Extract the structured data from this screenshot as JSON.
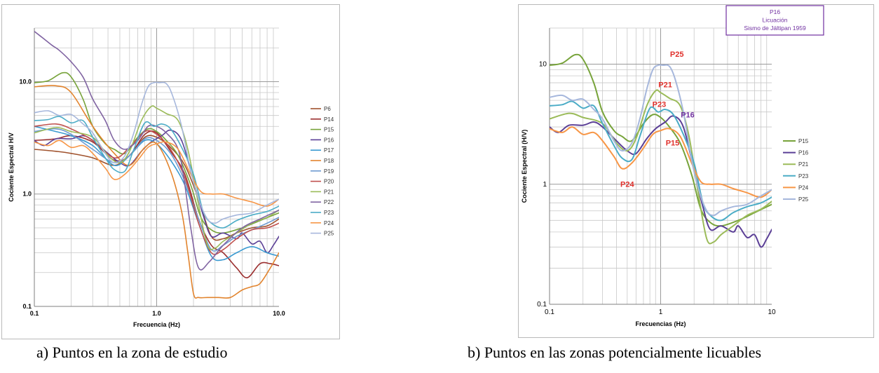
{
  "chart_data": [
    {
      "type": "line",
      "caption": "a) Puntos en la zona de estudio",
      "title": "",
      "xlabel": "Frecuencia (Hz)",
      "ylabel": "Cociente Espectral H/V",
      "xscale": "log",
      "yscale": "log",
      "xlim": [
        0.1,
        10.0
      ],
      "ylim": [
        0.1,
        30
      ],
      "xticks": [
        "0.1",
        "1.0",
        "10.0"
      ],
      "yticks": [
        "0.1",
        "1.0",
        "10.0"
      ],
      "grid": true,
      "legend_position": "right",
      "series": [
        {
          "name": "P6",
          "color": "#a0522d",
          "x": [
            0.1,
            0.15,
            0.2,
            0.3,
            0.45,
            0.6,
            0.8,
            1.0,
            1.3,
            1.7,
            2.2,
            2.8,
            3.5,
            4.5,
            6,
            8,
            10
          ],
          "y": [
            2.5,
            2.4,
            2.3,
            2.1,
            1.8,
            2.2,
            3.2,
            3.2,
            2.6,
            1.8,
            0.9,
            0.42,
            0.4,
            0.45,
            0.5,
            0.52,
            0.6
          ]
        },
        {
          "name": "P14",
          "color": "#9b2f2f",
          "x": [
            0.1,
            0.15,
            0.2,
            0.3,
            0.45,
            0.6,
            0.8,
            1.0,
            1.3,
            1.7,
            2.2,
            2.8,
            3.5,
            4.5,
            5.5,
            7,
            8.5,
            10
          ],
          "y": [
            3.0,
            3.1,
            3.3,
            2.9,
            2.0,
            2.2,
            3.4,
            3.5,
            2.4,
            1.5,
            0.6,
            0.35,
            0.3,
            0.22,
            0.18,
            0.24,
            0.24,
            0.23
          ]
        },
        {
          "name": "P15",
          "color": "#77a33a",
          "x": [
            0.1,
            0.13,
            0.17,
            0.2,
            0.25,
            0.3,
            0.38,
            0.45,
            0.55,
            0.7,
            0.85,
            1.0,
            1.2,
            1.5,
            1.9,
            2.3,
            2.8,
            3.5,
            5,
            7,
            10
          ],
          "y": [
            9.8,
            10.2,
            12.0,
            11.0,
            7.0,
            4.0,
            2.8,
            2.5,
            2.3,
            3.2,
            3.8,
            3.6,
            3.0,
            2.2,
            1.2,
            0.62,
            0.48,
            0.45,
            0.5,
            0.58,
            0.68
          ]
        },
        {
          "name": "P16",
          "color": "#5b3f96",
          "x": [
            0.1,
            0.12,
            0.15,
            0.2,
            0.25,
            0.3,
            0.4,
            0.5,
            0.6,
            0.75,
            0.9,
            1.1,
            1.3,
            1.6,
            2.0,
            2.4,
            2.8,
            3.5,
            4.5,
            5,
            6,
            7,
            8,
            9,
            10
          ],
          "y": [
            3.0,
            2.7,
            3.1,
            3.1,
            3.3,
            3.0,
            2.3,
            1.9,
            1.8,
            2.4,
            2.9,
            3.3,
            3.7,
            3.0,
            1.3,
            0.65,
            0.42,
            0.45,
            0.4,
            0.45,
            0.36,
            0.38,
            0.3,
            0.35,
            0.42
          ]
        },
        {
          "name": "P17",
          "color": "#3a9ad1",
          "x": [
            0.1,
            0.15,
            0.2,
            0.3,
            0.45,
            0.6,
            0.8,
            1.0,
            1.3,
            1.7,
            2.2,
            2.8,
            3.5,
            4.5,
            6,
            8,
            10
          ],
          "y": [
            4.0,
            3.6,
            3.3,
            2.7,
            1.8,
            2.2,
            3.0,
            2.8,
            2.0,
            1.2,
            0.55,
            0.28,
            0.26,
            0.3,
            0.34,
            0.3,
            0.28
          ]
        },
        {
          "name": "P18",
          "color": "#e2842e",
          "x": [
            0.1,
            0.15,
            0.2,
            0.3,
            0.45,
            0.6,
            0.8,
            1.0,
            1.3,
            1.6,
            1.8,
            2.0,
            2.2,
            2.6,
            3.2,
            4,
            5,
            6,
            7,
            8.5,
            10
          ],
          "y": [
            9.0,
            9.2,
            8.0,
            4.0,
            2.3,
            1.8,
            2.6,
            2.8,
            1.6,
            0.7,
            0.3,
            0.13,
            0.12,
            0.12,
            0.12,
            0.12,
            0.14,
            0.15,
            0.16,
            0.22,
            0.3
          ]
        },
        {
          "name": "P19",
          "color": "#6f9bd1",
          "x": [
            0.1,
            0.15,
            0.2,
            0.3,
            0.45,
            0.6,
            0.8,
            1.0,
            1.3,
            1.7,
            2.2,
            2.8,
            3.5,
            4.5,
            6,
            8,
            10
          ],
          "y": [
            3.6,
            3.8,
            3.4,
            2.5,
            1.9,
            2.2,
            3.1,
            3.0,
            2.3,
            1.3,
            0.6,
            0.32,
            0.35,
            0.42,
            0.48,
            0.55,
            0.62
          ]
        },
        {
          "name": "P20",
          "color": "#c0504d",
          "x": [
            0.1,
            0.15,
            0.2,
            0.3,
            0.45,
            0.6,
            0.8,
            1.0,
            1.3,
            1.7,
            2.2,
            2.8,
            3.5,
            4.5,
            6,
            8,
            10
          ],
          "y": [
            4.0,
            4.2,
            3.8,
            3.0,
            2.1,
            2.6,
            3.6,
            3.4,
            2.5,
            1.4,
            0.55,
            0.3,
            0.32,
            0.4,
            0.48,
            0.5,
            0.55
          ]
        },
        {
          "name": "P21",
          "color": "#9bbb59",
          "x": [
            0.1,
            0.15,
            0.2,
            0.3,
            0.4,
            0.5,
            0.6,
            0.75,
            0.9,
            1.0,
            1.2,
            1.5,
            1.8,
            2.2,
            2.6,
            3.0,
            3.5,
            4.5,
            6,
            8,
            10
          ],
          "y": [
            3.5,
            3.9,
            3.6,
            3.2,
            2.2,
            1.9,
            2.4,
            4.5,
            6.0,
            5.8,
            5.2,
            4.5,
            2.5,
            0.8,
            0.35,
            0.33,
            0.38,
            0.45,
            0.55,
            0.62,
            0.72
          ]
        },
        {
          "name": "P22",
          "color": "#8064a2",
          "x": [
            0.1,
            0.12,
            0.14,
            0.16,
            0.2,
            0.25,
            0.3,
            0.38,
            0.45,
            0.55,
            0.7,
            0.85,
            1.0,
            1.2,
            1.5,
            1.7,
            1.9,
            2.2,
            2.7,
            3.5,
            5,
            7,
            10
          ],
          "y": [
            28,
            24,
            21,
            19,
            15,
            11,
            7,
            4.5,
            3,
            2.5,
            3,
            4,
            4,
            3.5,
            2.5,
            1.2,
            0.5,
            0.22,
            0.25,
            0.35,
            0.5,
            0.6,
            0.72
          ]
        },
        {
          "name": "P23",
          "color": "#4bacc6",
          "x": [
            0.1,
            0.13,
            0.16,
            0.2,
            0.25,
            0.3,
            0.38,
            0.45,
            0.55,
            0.65,
            0.8,
            0.95,
            1.1,
            1.3,
            1.6,
            2.0,
            2.4,
            2.8,
            3.5,
            4.5,
            6,
            8,
            10
          ],
          "y": [
            4.5,
            4.6,
            4.9,
            4.3,
            4.5,
            3.2,
            2.1,
            1.65,
            1.6,
            2.5,
            4.3,
            4.0,
            4.2,
            3.8,
            2.6,
            1.5,
            0.7,
            0.55,
            0.5,
            0.58,
            0.65,
            0.7,
            0.78
          ]
        },
        {
          "name": "P24",
          "color": "#f79646",
          "x": [
            0.1,
            0.13,
            0.16,
            0.2,
            0.25,
            0.3,
            0.38,
            0.45,
            0.55,
            0.7,
            0.85,
            1.0,
            1.2,
            1.5,
            1.9,
            2.3,
            2.8,
            3.5,
            4.5,
            6,
            8,
            10
          ],
          "y": [
            2.9,
            2.7,
            3.0,
            2.6,
            2.7,
            2.3,
            1.7,
            1.35,
            1.5,
            2.0,
            2.6,
            2.8,
            2.9,
            2.5,
            1.5,
            1.05,
            1.0,
            1.0,
            0.92,
            0.85,
            0.78,
            0.9
          ]
        },
        {
          "name": "P25",
          "color": "#a6b7dc",
          "x": [
            0.1,
            0.13,
            0.16,
            0.2,
            0.25,
            0.3,
            0.38,
            0.45,
            0.55,
            0.65,
            0.75,
            0.85,
            0.95,
            1.05,
            1.2,
            1.35,
            1.6,
            1.9,
            2.2,
            2.6,
            3,
            3.5,
            4.5,
            6,
            8,
            10
          ],
          "y": [
            5.3,
            5.5,
            5.0,
            5.1,
            4.2,
            3.5,
            2.3,
            1.9,
            2.2,
            3.5,
            6.2,
            9,
            9.8,
            9.8,
            9.6,
            7.5,
            4,
            1.6,
            0.9,
            0.6,
            0.55,
            0.6,
            0.65,
            0.68,
            0.8,
            0.9
          ]
        }
      ]
    },
    {
      "type": "line",
      "caption": "b) Puntos en las zonas potencialmente licuables",
      "title": "",
      "xlabel": "Frecuencias (Hz)",
      "ylabel": "Cociente Espectral  (H/V)",
      "xscale": "log",
      "yscale": "log",
      "xlim": [
        0.1,
        10
      ],
      "ylim": [
        0.1,
        20
      ],
      "xticks": [
        "0.1",
        "1",
        "10"
      ],
      "yticks": [
        "0.1",
        "1",
        "10"
      ],
      "grid": true,
      "legend_position": "right",
      "info_box": [
        "P16",
        "Licuación",
        "Sismo de Jáltipan 1959"
      ],
      "annotations": [
        {
          "text": "P25",
          "x": 1.4,
          "y": 11.5,
          "color": "#e0302b"
        },
        {
          "text": "P21",
          "x": 1.1,
          "y": 6.4,
          "color": "#e0302b"
        },
        {
          "text": "P23",
          "x": 0.97,
          "y": 4.4,
          "color": "#e0302b"
        },
        {
          "text": "P16",
          "x": 1.75,
          "y": 3.6,
          "color": "#7030a0"
        },
        {
          "text": "P15",
          "x": 1.28,
          "y": 2.1,
          "color": "#e0302b"
        },
        {
          "text": "P24",
          "x": 0.5,
          "y": 0.95,
          "color": "#e0302b"
        }
      ],
      "series": [
        {
          "name": "P15",
          "color": "#77a33a",
          "x": [
            0.1,
            0.13,
            0.17,
            0.2,
            0.25,
            0.3,
            0.38,
            0.45,
            0.55,
            0.7,
            0.85,
            1.0,
            1.2,
            1.5,
            1.9,
            2.3,
            2.8,
            3.5,
            5,
            7,
            10
          ],
          "y": [
            9.8,
            10.2,
            12.0,
            11.0,
            7.0,
            4.0,
            2.8,
            2.5,
            2.3,
            3.2,
            3.8,
            3.6,
            3.0,
            2.2,
            1.2,
            0.62,
            0.48,
            0.45,
            0.5,
            0.58,
            0.68
          ]
        },
        {
          "name": "P16",
          "color": "#5b3f96",
          "x": [
            0.1,
            0.12,
            0.15,
            0.2,
            0.25,
            0.3,
            0.4,
            0.5,
            0.6,
            0.75,
            0.9,
            1.1,
            1.3,
            1.6,
            2.0,
            2.4,
            2.8,
            3.5,
            4.5,
            5,
            6,
            7,
            8,
            9,
            10
          ],
          "y": [
            3.0,
            2.7,
            3.1,
            3.1,
            3.3,
            3.0,
            2.3,
            1.9,
            1.8,
            2.4,
            2.9,
            3.3,
            3.7,
            3.0,
            1.3,
            0.65,
            0.42,
            0.45,
            0.4,
            0.45,
            0.36,
            0.38,
            0.3,
            0.35,
            0.42
          ]
        },
        {
          "name": "P21",
          "color": "#9bbb59",
          "x": [
            0.1,
            0.15,
            0.2,
            0.3,
            0.4,
            0.5,
            0.6,
            0.75,
            0.9,
            1.0,
            1.2,
            1.5,
            1.8,
            2.2,
            2.6,
            3.0,
            3.5,
            4.5,
            6,
            8,
            10
          ],
          "y": [
            3.5,
            3.9,
            3.6,
            3.2,
            2.2,
            1.9,
            2.4,
            4.5,
            6.0,
            5.8,
            5.2,
            4.5,
            2.5,
            0.8,
            0.35,
            0.33,
            0.38,
            0.45,
            0.55,
            0.62,
            0.72
          ]
        },
        {
          "name": "P23",
          "color": "#4bacc6",
          "x": [
            0.1,
            0.13,
            0.16,
            0.2,
            0.25,
            0.3,
            0.38,
            0.45,
            0.55,
            0.65,
            0.8,
            0.95,
            1.1,
            1.3,
            1.6,
            2.0,
            2.4,
            2.8,
            3.5,
            4.5,
            6,
            8,
            10
          ],
          "y": [
            4.5,
            4.6,
            4.9,
            4.3,
            4.5,
            3.2,
            2.1,
            1.65,
            1.6,
            2.5,
            4.3,
            4.0,
            4.2,
            3.8,
            2.6,
            1.5,
            0.7,
            0.55,
            0.5,
            0.58,
            0.65,
            0.7,
            0.78
          ]
        },
        {
          "name": "P24",
          "color": "#f79646",
          "x": [
            0.1,
            0.13,
            0.16,
            0.2,
            0.25,
            0.3,
            0.38,
            0.45,
            0.55,
            0.7,
            0.85,
            1.0,
            1.2,
            1.5,
            1.9,
            2.3,
            2.8,
            3.5,
            4.5,
            6,
            8,
            10
          ],
          "y": [
            2.9,
            2.7,
            3.0,
            2.6,
            2.7,
            2.3,
            1.7,
            1.35,
            1.5,
            2.0,
            2.6,
            2.8,
            2.9,
            2.5,
            1.5,
            1.05,
            1.0,
            1.0,
            0.92,
            0.85,
            0.78,
            0.9
          ]
        },
        {
          "name": "P25",
          "color": "#a6b7dc",
          "x": [
            0.1,
            0.13,
            0.16,
            0.2,
            0.25,
            0.3,
            0.38,
            0.45,
            0.55,
            0.65,
            0.75,
            0.85,
            0.95,
            1.05,
            1.2,
            1.35,
            1.6,
            1.9,
            2.2,
            2.6,
            3,
            3.5,
            4.5,
            6,
            8,
            10
          ],
          "y": [
            5.3,
            5.5,
            5.0,
            5.1,
            4.2,
            3.5,
            2.3,
            1.9,
            2.2,
            3.5,
            6.2,
            9,
            9.8,
            9.8,
            9.6,
            7.5,
            4,
            1.6,
            0.9,
            0.6,
            0.55,
            0.6,
            0.65,
            0.68,
            0.8,
            0.9
          ]
        }
      ]
    }
  ]
}
